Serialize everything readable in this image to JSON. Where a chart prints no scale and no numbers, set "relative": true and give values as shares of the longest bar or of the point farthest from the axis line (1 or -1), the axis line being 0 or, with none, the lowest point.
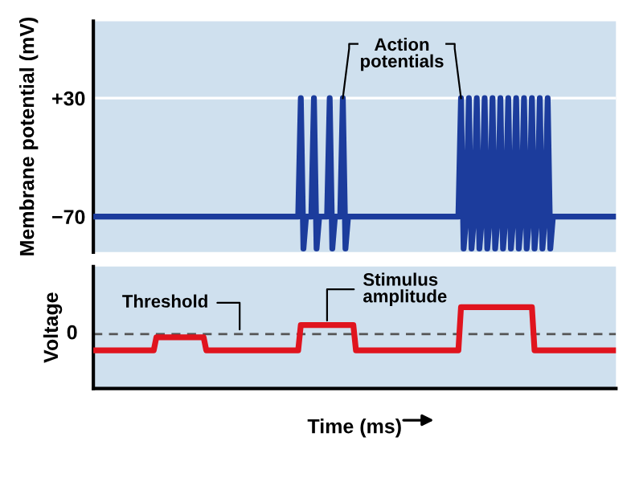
{
  "chart_data": [
    {
      "type": "line",
      "ylabel": "Membrane potential (mV)",
      "ylim": [
        -100,
        95
      ],
      "yticks": [
        {
          "value": 30,
          "label": "+30"
        },
        {
          "value": -70,
          "label": "−70"
        }
      ],
      "grid": "y",
      "tick_labels": "y",
      "annotations": [
        "Action\npotentials"
      ],
      "categories": [
        null,
        null,
        null,
        null,
        null,
        null,
        null,
        null,
        null,
        null,
        null,
        null,
        null,
        null,
        null,
        null,
        null,
        null,
        null,
        null,
        null,
        null,
        null,
        null,
        null,
        null,
        null,
        null,
        null,
        null,
        null,
        null,
        null,
        null,
        null,
        null,
        null,
        null,
        null,
        null,
        null,
        null,
        null,
        null,
        null,
        null,
        null,
        null,
        null,
        null,
        null,
        null,
        null,
        null,
        null,
        null,
        null,
        null,
        null,
        null,
        null,
        null,
        null,
        null,
        null,
        null,
        null,
        null,
        null,
        null,
        null,
        null,
        null,
        null,
        null,
        null,
        null,
        null,
        null,
        null,
        null,
        null,
        null,
        null,
        null,
        null,
        null,
        null,
        null,
        null,
        null,
        null,
        null,
        null,
        null,
        null,
        null,
        null,
        null,
        null,
        null,
        null,
        null,
        null,
        null,
        null,
        null,
        null,
        null,
        null,
        null,
        null,
        null,
        null,
        null,
        null,
        null,
        null,
        null,
        null,
        null,
        null,
        null,
        null,
        null,
        null,
        null,
        null,
        null,
        null,
        null,
        null,
        null,
        null,
        null,
        null,
        null,
        null,
        null,
        null,
        null,
        null,
        null,
        null,
        null,
        null,
        null,
        null,
        null,
        null,
        null,
        null,
        null,
        null,
        null,
        null,
        null,
        null,
        null,
        null,
        null,
        null,
        null,
        null,
        null,
        null,
        null,
        null,
        null,
        null,
        null,
        null,
        null,
        null,
        null,
        null,
        null,
        null,
        null,
        null,
        null,
        null,
        null,
        null,
        null,
        null,
        null,
        null,
        null,
        null,
        null,
        null,
        null,
        null,
        null,
        null,
        null,
        null,
        null,
        null
      ],
      "series": [
        {
          "color": "#1c3c9c",
          "values": [
            -70,
            -70,
            -70,
            -70,
            -70,
            -70,
            -70,
            -70,
            -70,
            -70,
            -70,
            -70,
            -70,
            -70,
            -70,
            -70,
            -70,
            -70,
            -70,
            -70,
            -70,
            -70,
            -70,
            -70,
            -70,
            -70,
            -70,
            -70,
            -70,
            -70,
            -70,
            -70,
            -70,
            -70,
            -70,
            -70,
            -70,
            -70,
            -70,
            -70,
            -70,
            -70,
            -70,
            -70,
            -70,
            -70,
            -70,
            -70,
            -70,
            -70,
            -70,
            -70,
            -70,
            -70,
            -70,
            -70,
            -70,
            -70,
            -70,
            -70,
            -70,
            -70,
            -70,
            -70,
            -70,
            -70,
            -70,
            -70,
            -70,
            -70,
            -70,
            -70,
            -70,
            -70,
            -70,
            -70,
            -70,
            -70,
            -70,
            30,
            -97,
            -70,
            -70,
            -70,
            30,
            -97,
            -70,
            -70,
            -70,
            -70,
            30,
            -97,
            -70,
            -70,
            -70,
            30,
            -97,
            -70,
            -70,
            -70,
            -70,
            -70,
            -70,
            -70,
            -70,
            -70,
            -70,
            -70,
            -70,
            -70,
            -70,
            -70,
            -70,
            -70,
            -70,
            -70,
            -70,
            -70,
            -70,
            -70,
            -70,
            -70,
            -70,
            -70,
            -70,
            -70,
            -70,
            -70,
            -70,
            -70,
            -70,
            -70,
            -70,
            -70,
            -70,
            -70,
            -70,
            -70,
            -70,
            -70,
            30,
            -97,
            -70,
            30,
            -97,
            -70,
            30,
            -97,
            -70,
            30,
            -97,
            -70,
            30,
            -97,
            -70,
            30,
            -97,
            -70,
            30,
            -97,
            -70,
            30,
            -97,
            -70,
            30,
            -97,
            -70,
            30,
            -97,
            -70,
            30,
            -97,
            -70,
            30,
            -97,
            -70,
            -70,
            -70,
            -70,
            -70,
            -70,
            -70,
            -70,
            -70,
            -70,
            -70,
            -70,
            -70,
            -70,
            -70,
            -70,
            -70,
            -70,
            -70,
            -70,
            -70,
            -70,
            -70,
            -70,
            -70
          ]
        }
      ]
    },
    {
      "type": "line",
      "ylabel": "Voltage",
      "xlabel": "Time (ms)",
      "relative": true,
      "tick_labels": false,
      "ref_lines": [
        {
          "axis": "y",
          "value": 0.67,
          "label": "Threshold",
          "color": "#555555",
          "line_style": "dashed"
        }
      ],
      "annotations": [
        "0",
        "Stimulus\namplitude"
      ],
      "categories": [
        null,
        null,
        null,
        null,
        null,
        null,
        null,
        null,
        null,
        null,
        null,
        null,
        null,
        null,
        null,
        null,
        null,
        null,
        null,
        null,
        null,
        null,
        null,
        null,
        null,
        null,
        null,
        null,
        null,
        null,
        null,
        null,
        null,
        null,
        null,
        null,
        null,
        null,
        null,
        null,
        null,
        null,
        null,
        null,
        null,
        null,
        null,
        null,
        null,
        null,
        null,
        null,
        null,
        null,
        null,
        null,
        null,
        null,
        null,
        null,
        null,
        null,
        null,
        null,
        null,
        null,
        null,
        null,
        null,
        null,
        null,
        null,
        null,
        null,
        null,
        null,
        null,
        null,
        null,
        null,
        null,
        null,
        null,
        null,
        null,
        null,
        null,
        null,
        null,
        null,
        null,
        null,
        null,
        null,
        null,
        null,
        null,
        null,
        null,
        null,
        null,
        null,
        null,
        null,
        null,
        null,
        null,
        null,
        null,
        null,
        null,
        null,
        null,
        null,
        null,
        null,
        null,
        null,
        null,
        null,
        null,
        null,
        null,
        null,
        null,
        null,
        null,
        null,
        null,
        null,
        null,
        null,
        null,
        null,
        null,
        null,
        null,
        null,
        null,
        null,
        null,
        null,
        null,
        null,
        null,
        null,
        null,
        null,
        null,
        null,
        null,
        null,
        null,
        null,
        null,
        null,
        null,
        null,
        null,
        null,
        null,
        null,
        null,
        null,
        null,
        null,
        null,
        null,
        null,
        null,
        null,
        null,
        null,
        null,
        null,
        null,
        null,
        null,
        null,
        null,
        null,
        null,
        null,
        null,
        null,
        null,
        null,
        null,
        null,
        null,
        null,
        null,
        null,
        null,
        null,
        null,
        null,
        null,
        null,
        null
      ],
      "series": [
        {
          "color": "#e0141e",
          "values": [
            0.47,
            0.47,
            0.47,
            0.47,
            0.47,
            0.47,
            0.47,
            0.47,
            0.47,
            0.47,
            0.47,
            0.47,
            0.47,
            0.47,
            0.47,
            0.47,
            0.47,
            0.47,
            0.47,
            0.47,
            0.47,
            0.47,
            0.47,
            0.47,
            0.63,
            0.63,
            0.63,
            0.63,
            0.63,
            0.63,
            0.63,
            0.63,
            0.63,
            0.63,
            0.63,
            0.63,
            0.63,
            0.63,
            0.63,
            0.63,
            0.63,
            0.63,
            0.63,
            0.47,
            0.47,
            0.47,
            0.47,
            0.47,
            0.47,
            0.47,
            0.47,
            0.47,
            0.47,
            0.47,
            0.47,
            0.47,
            0.47,
            0.47,
            0.47,
            0.47,
            0.47,
            0.47,
            0.47,
            0.47,
            0.47,
            0.47,
            0.47,
            0.47,
            0.47,
            0.47,
            0.47,
            0.47,
            0.47,
            0.47,
            0.47,
            0.47,
            0.47,
            0.47,
            0.47,
            0.78,
            0.78,
            0.78,
            0.78,
            0.78,
            0.78,
            0.78,
            0.78,
            0.78,
            0.78,
            0.78,
            0.78,
            0.78,
            0.78,
            0.78,
            0.78,
            0.78,
            0.78,
            0.78,
            0.78,
            0.78,
            0.47,
            0.47,
            0.47,
            0.47,
            0.47,
            0.47,
            0.47,
            0.47,
            0.47,
            0.47,
            0.47,
            0.47,
            0.47,
            0.47,
            0.47,
            0.47,
            0.47,
            0.47,
            0.47,
            0.47,
            0.47,
            0.47,
            0.47,
            0.47,
            0.47,
            0.47,
            0.47,
            0.47,
            0.47,
            0.47,
            0.47,
            0.47,
            0.47,
            0.47,
            0.47,
            0.47,
            0.47,
            0.47,
            0.47,
            0.47,
            1.0,
            1.0,
            1.0,
            1.0,
            1.0,
            1.0,
            1.0,
            1.0,
            1.0,
            1.0,
            1.0,
            1.0,
            1.0,
            1.0,
            1.0,
            1.0,
            1.0,
            1.0,
            1.0,
            1.0,
            1.0,
            1.0,
            1.0,
            1.0,
            1.0,
            1.0,
            1.0,
            1.0,
            0.47,
            0.47,
            0.47,
            0.47,
            0.47,
            0.47,
            0.47,
            0.47,
            0.47,
            0.47,
            0.47,
            0.47,
            0.47,
            0.47,
            0.47,
            0.47,
            0.47,
            0.47,
            0.47,
            0.47,
            0.47,
            0.47,
            0.47,
            0.47,
            0.47,
            0.47,
            0.47,
            0.47,
            0.47,
            0.47,
            0.47,
            0.47
          ]
        }
      ]
    }
  ]
}
